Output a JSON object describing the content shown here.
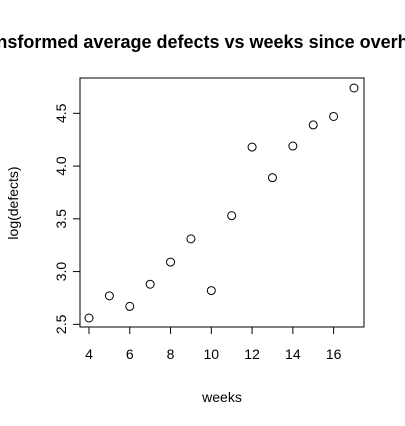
{
  "chart_data": {
    "type": "scatter",
    "title": "Transformed average defects vs weeks since overhaul",
    "xlabel": "weeks",
    "ylabel": "log(defects)",
    "xlim": [
      4,
      17
    ],
    "ylim": [
      2.56,
      4.74
    ],
    "x_ticks": [
      4,
      6,
      8,
      10,
      12,
      14,
      16
    ],
    "x_tick_labels": [
      "4",
      "6",
      "8",
      "10",
      "12",
      "14",
      "16"
    ],
    "y_ticks": [
      2.5,
      3.0,
      3.5,
      4.0,
      4.5
    ],
    "y_tick_labels": [
      "2.5",
      "3.0",
      "3.5",
      "4.0",
      "4.5"
    ],
    "grid": false,
    "marker": "open-circle",
    "points": [
      {
        "x": 4,
        "y": 2.56
      },
      {
        "x": 5,
        "y": 2.77
      },
      {
        "x": 6,
        "y": 2.67
      },
      {
        "x": 7,
        "y": 2.88
      },
      {
        "x": 8,
        "y": 3.09
      },
      {
        "x": 9,
        "y": 3.31
      },
      {
        "x": 10,
        "y": 2.82
      },
      {
        "x": 11,
        "y": 3.53
      },
      {
        "x": 12,
        "y": 4.18
      },
      {
        "x": 13,
        "y": 3.89
      },
      {
        "x": 14,
        "y": 4.19
      },
      {
        "x": 15,
        "y": 4.39
      },
      {
        "x": 16,
        "y": 4.47
      },
      {
        "x": 17,
        "y": 4.74
      }
    ]
  }
}
